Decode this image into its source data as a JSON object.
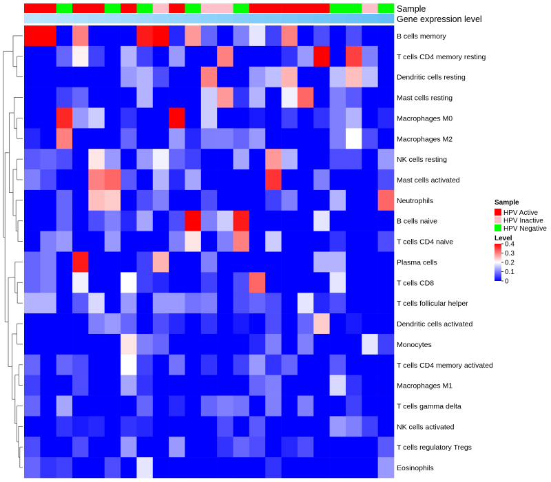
{
  "chart_data": {
    "type": "heatmap",
    "title": "",
    "annotation_tracks": {
      "sample_label": "Sample",
      "level_label": "Gene expression level"
    },
    "legend": {
      "sample_title": "Sample",
      "sample_entries": [
        {
          "name": "HPV Active",
          "color": "#ff0000"
        },
        {
          "name": "HPV Inactive",
          "color": "#ffc0cb"
        },
        {
          "name": "HPV Negative",
          "color": "#00ff00"
        }
      ],
      "level_title": "Level",
      "level_ticks": [
        "0.4",
        "0.3",
        "0.2",
        "0.1",
        "0"
      ],
      "level_range": [
        0,
        0.4
      ]
    },
    "colors": {
      "low": "#0000ff",
      "mid": "#ffffff",
      "high": "#ff0000",
      "track_light": "#bfe6ff",
      "track_dark": "#5bbcf5"
    },
    "columns": {
      "sample": [
        "HPV Active",
        "HPV Active",
        "HPV Negative",
        "HPV Active",
        "HPV Active",
        "HPV Negative",
        "HPV Active",
        "HPV Negative",
        "HPV Inactive",
        "HPV Active",
        "HPV Negative",
        "HPV Inactive",
        "HPV Inactive",
        "HPV Negative",
        "HPV Active",
        "HPV Active",
        "HPV Active",
        "HPV Active",
        "HPV Active",
        "HPV Negative",
        "HPV Negative",
        "HPV Inactive",
        "HPV Negative"
      ],
      "expression_level": [
        0.05,
        0.09,
        0.13,
        0.17,
        0.21,
        0.25,
        0.29,
        0.33,
        0.37,
        0.41,
        0.45,
        0.49,
        0.53,
        0.57,
        0.61,
        0.65,
        0.69,
        0.73,
        0.77,
        0.81,
        0.85,
        0.89,
        0.93
      ]
    },
    "rows": [
      {
        "name": "B cells memory",
        "values": [
          0.4,
          0.4,
          0.0,
          0.3,
          0.0,
          0.0,
          0.0,
          0.38,
          0.4,
          0.03,
          0.28,
          0.08,
          0.0,
          0.1,
          0.18,
          0.05,
          0.3,
          0.0,
          0.06,
          0.0,
          0.06,
          0.0,
          0.0
        ]
      },
      {
        "name": "T cells CD4 memory resting",
        "values": [
          0.0,
          0.0,
          0.08,
          0.21,
          0.05,
          0.0,
          0.14,
          0.05,
          0.0,
          0.12,
          0.0,
          0.0,
          0.3,
          0.0,
          0.0,
          0.0,
          0.04,
          0.12,
          0.4,
          0.0,
          0.35,
          0.1,
          0.0
        ]
      },
      {
        "name": "Dendritic cells resting",
        "values": [
          0.0,
          0.0,
          0.0,
          0.0,
          0.0,
          0.0,
          0.12,
          0.14,
          0.06,
          0.0,
          0.0,
          0.3,
          0.0,
          0.0,
          0.12,
          0.15,
          0.26,
          0.0,
          0.0,
          0.15,
          0.25,
          0.15,
          0.0
        ]
      },
      {
        "name": "Mast cells resting",
        "values": [
          0.0,
          0.0,
          0.05,
          0.08,
          0.0,
          0.0,
          0.0,
          0.14,
          0.0,
          0.0,
          0.0,
          0.16,
          0.28,
          0.04,
          0.14,
          0.0,
          0.19,
          0.32,
          0.0,
          0.1,
          0.07,
          0.0,
          0.0
        ]
      },
      {
        "name": "Macrophages M0",
        "values": [
          0.0,
          0.0,
          0.37,
          0.12,
          0.16,
          0.0,
          0.04,
          0.0,
          0.0,
          0.4,
          0.0,
          0.16,
          0.0,
          0.0,
          0.02,
          0.0,
          0.05,
          0.0,
          0.04,
          0.1,
          0.14,
          0.0,
          0.03
        ]
      },
      {
        "name": "Macrophages M2",
        "values": [
          0.03,
          0.0,
          0.3,
          0.0,
          0.0,
          0.0,
          0.08,
          0.0,
          0.0,
          0.12,
          0.03,
          0.1,
          0.1,
          0.08,
          0.12,
          0.0,
          0.0,
          0.0,
          0.0,
          0.1,
          0.2,
          0.06,
          0.0
        ]
      },
      {
        "name": "NK cells resting",
        "values": [
          0.07,
          0.08,
          0.06,
          0.0,
          0.22,
          0.12,
          0.0,
          0.12,
          0.19,
          0.08,
          0.05,
          0.0,
          0.0,
          0.13,
          0.0,
          0.28,
          0.14,
          0.0,
          0.0,
          0.06,
          0.06,
          0.0,
          0.12
        ]
      },
      {
        "name": "Mast cells activated",
        "values": [
          0.1,
          0.06,
          0.0,
          0.0,
          0.3,
          0.32,
          0.07,
          0.0,
          0.14,
          0.03,
          0.13,
          0.0,
          0.0,
          0.0,
          0.0,
          0.36,
          0.0,
          0.0,
          0.1,
          0.0,
          0.0,
          0.0,
          0.06
        ]
      },
      {
        "name": "Neutrophils",
        "values": [
          0.0,
          0.0,
          0.08,
          0.0,
          0.25,
          0.24,
          0.0,
          0.06,
          0.1,
          0.0,
          0.0,
          0.06,
          0.0,
          0.0,
          0.0,
          0.05,
          0.1,
          0.0,
          0.0,
          0.14,
          0.0,
          0.0,
          0.32
        ]
      },
      {
        "name": "B cells naive",
        "values": [
          0.0,
          0.0,
          0.08,
          0.0,
          0.06,
          0.1,
          0.03,
          0.13,
          0.0,
          0.06,
          0.4,
          0.1,
          0.16,
          0.38,
          0.0,
          0.0,
          0.0,
          0.0,
          0.18,
          0.0,
          0.0,
          0.0,
          0.0
        ]
      },
      {
        "name": "T cells CD4 naive",
        "values": [
          0.0,
          0.1,
          0.12,
          0.0,
          0.0,
          0.12,
          0.0,
          0.0,
          0.0,
          0.1,
          0.22,
          0.0,
          0.1,
          0.3,
          0.0,
          0.16,
          0.0,
          0.0,
          0.0,
          0.04,
          0.0,
          0.0,
          0.06
        ]
      },
      {
        "name": "Plasma cells",
        "values": [
          0.08,
          0.1,
          0.0,
          0.38,
          0.0,
          0.0,
          0.0,
          0.05,
          0.26,
          0.0,
          0.0,
          0.1,
          0.0,
          0.0,
          0.0,
          0.0,
          0.0,
          0.0,
          0.14,
          0.14,
          0.0,
          0.0,
          0.0
        ]
      },
      {
        "name": "T cells CD8",
        "values": [
          0.08,
          0.1,
          0.0,
          0.19,
          0.0,
          0.0,
          0.2,
          0.05,
          0.03,
          0.0,
          0.0,
          0.05,
          0.0,
          0.06,
          0.32,
          0.0,
          0.0,
          0.0,
          0.0,
          0.18,
          0.0,
          0.0,
          0.0
        ]
      },
      {
        "name": "T cells follicular helper",
        "values": [
          0.14,
          0.14,
          0.0,
          0.07,
          0.17,
          0.0,
          0.12,
          0.0,
          0.12,
          0.12,
          0.09,
          0.1,
          0.0,
          0.06,
          0.08,
          0.06,
          0.0,
          0.18,
          0.03,
          0.06,
          0.0,
          0.0,
          0.0
        ]
      },
      {
        "name": "Dendritic cells activated",
        "values": [
          0.0,
          0.0,
          0.0,
          0.0,
          0.1,
          0.12,
          0.08,
          0.0,
          0.06,
          0.03,
          0.0,
          0.04,
          0.0,
          0.02,
          0.0,
          0.06,
          0.0,
          0.08,
          0.24,
          0.0,
          0.02,
          0.0,
          0.0
        ]
      },
      {
        "name": "Monocytes",
        "values": [
          0.0,
          0.0,
          0.0,
          0.0,
          0.0,
          0.0,
          0.22,
          0.1,
          0.08,
          0.0,
          0.0,
          0.0,
          0.0,
          0.0,
          0.03,
          0.1,
          0.0,
          0.1,
          0.0,
          0.0,
          0.0,
          0.18,
          0.05
        ]
      },
      {
        "name": "T cells CD4 memory activated",
        "values": [
          0.08,
          0.0,
          0.08,
          0.06,
          0.0,
          0.0,
          0.2,
          0.05,
          0.0,
          0.09,
          0.0,
          0.04,
          0.0,
          0.05,
          0.12,
          0.04,
          0.08,
          0.0,
          0.0,
          0.07,
          0.0,
          0.0,
          0.0
        ]
      },
      {
        "name": "Macrophages M1",
        "values": [
          0.05,
          0.0,
          0.0,
          0.06,
          0.0,
          0.0,
          0.13,
          0.04,
          0.0,
          0.0,
          0.0,
          0.0,
          0.0,
          0.0,
          0.08,
          0.1,
          0.0,
          0.0,
          0.0,
          0.17,
          0.04,
          0.0,
          0.0
        ]
      },
      {
        "name": "T cells gamma delta",
        "values": [
          0.08,
          0.0,
          0.13,
          0.0,
          0.0,
          0.0,
          0.0,
          0.08,
          0.0,
          0.03,
          0.0,
          0.08,
          0.1,
          0.09,
          0.0,
          0.1,
          0.0,
          0.1,
          0.0,
          0.0,
          0.05,
          0.0,
          0.0
        ]
      },
      {
        "name": "NK cells activated",
        "values": [
          0.0,
          0.0,
          0.04,
          0.02,
          0.03,
          0.0,
          0.04,
          0.03,
          0.0,
          0.0,
          0.0,
          0.0,
          0.06,
          0.0,
          0.07,
          0.0,
          0.0,
          0.0,
          0.0,
          0.12,
          0.1,
          0.05,
          0.0
        ]
      },
      {
        "name": "T cells regulatory  Tregs",
        "values": [
          0.06,
          0.0,
          0.0,
          0.06,
          0.0,
          0.0,
          0.12,
          0.0,
          0.0,
          0.12,
          0.0,
          0.0,
          0.04,
          0.08,
          0.06,
          0.0,
          0.03,
          0.06,
          0.0,
          0.0,
          0.0,
          0.0,
          0.07
        ]
      },
      {
        "name": "Eosinophils",
        "values": [
          0.08,
          0.04,
          0.05,
          0.0,
          0.0,
          0.06,
          0.0,
          0.18,
          0.0,
          0.0,
          0.0,
          0.0,
          0.0,
          0.0,
          0.0,
          0.04,
          0.0,
          0.0,
          0.0,
          0.0,
          0.0,
          0.0,
          0.12
        ]
      }
    ]
  }
}
